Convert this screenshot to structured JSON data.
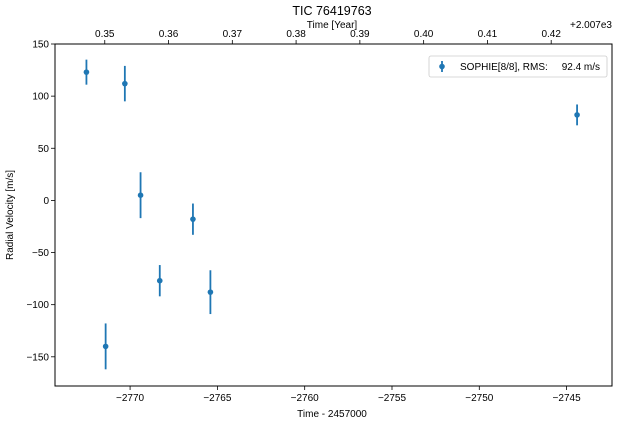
{
  "chart_data": {
    "type": "scatter",
    "title": "TIC 76419763",
    "xlabel": "Time - 2457000",
    "ylabel": "Radial Velocity [m/s]",
    "top_xlabel": "Time [Year]",
    "top_offset_label": "+2.007e3",
    "xlim": [
      -2774.3,
      -2742.4
    ],
    "ylim": [
      -178,
      150
    ],
    "xticks": [
      -2770,
      -2765,
      -2760,
      -2755,
      -2750,
      -2745
    ],
    "xtick_labels": [
      "−2770",
      "−2765",
      "−2760",
      "−2755",
      "−2750",
      "−2745"
    ],
    "yticks": [
      -150,
      -100,
      -50,
      0,
      50,
      100,
      150
    ],
    "ytick_labels": [
      "−150",
      "−100",
      "−50",
      "0",
      "50",
      "100",
      "150"
    ],
    "top_ticks": [
      0.35,
      0.36,
      0.37,
      0.38,
      0.39,
      0.4,
      0.41,
      0.42
    ],
    "top_tick_labels": [
      "0.35",
      "0.36",
      "0.37",
      "0.38",
      "0.39",
      "0.40",
      "0.41",
      "0.42"
    ],
    "grid": false,
    "legend_position": "top-right",
    "series": [
      {
        "name": "SOPHIE[8/8], RMS:     92.4 m/s",
        "color": "#1f77b4",
        "x": [
          -2772.5,
          -2771.4,
          -2770.3,
          -2769.4,
          -2768.3,
          -2766.4,
          -2765.4,
          -2744.4
        ],
        "y": [
          123,
          -140,
          112,
          5,
          -77,
          -18,
          -88,
          82
        ],
        "yerr": [
          12,
          22,
          17,
          22,
          15,
          15,
          21,
          10
        ]
      }
    ]
  }
}
